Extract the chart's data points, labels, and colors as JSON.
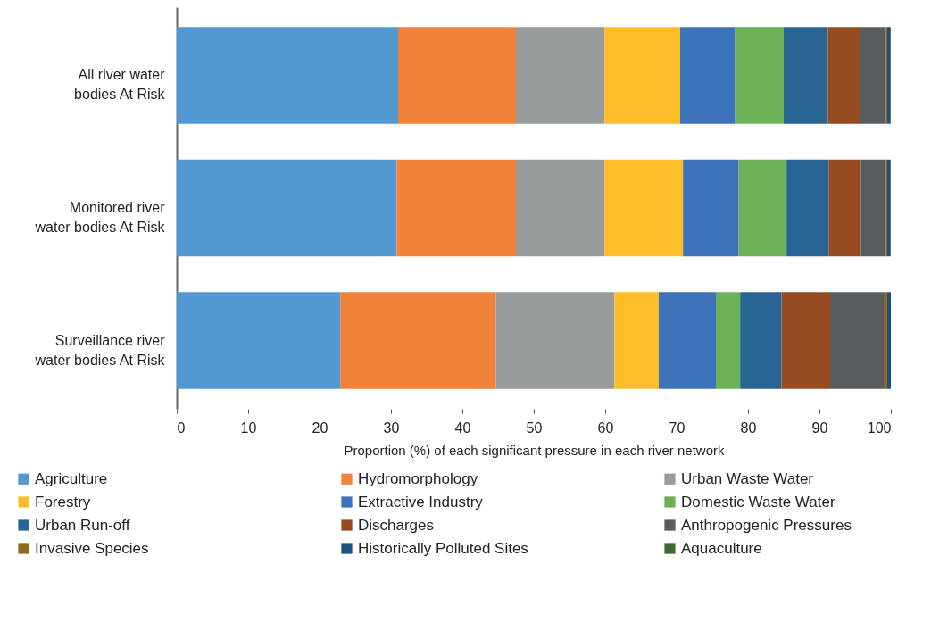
{
  "chart_data": {
    "type": "bar",
    "orientation": "horizontal",
    "stacked": true,
    "xlabel": "Proportion (%) of each significant pressure in each river network",
    "categories": [
      "All river water bodies At Risk",
      "Monitored river water bodies At Risk",
      "Surveillance river water bodies At Risk"
    ],
    "xlim": [
      0,
      100
    ],
    "xticks": [
      0,
      10,
      20,
      30,
      40,
      50,
      60,
      70,
      80,
      90,
      100
    ],
    "grid": false,
    "legend": "bottom",
    "series": [
      {
        "name": "Agriculture",
        "color": "#5298d2",
        "values": [
          31.0,
          30.8,
          22.9
        ]
      },
      {
        "name": "Hydromorphology",
        "color": "#f0823b",
        "values": [
          16.5,
          16.7,
          21.8
        ]
      },
      {
        "name": "Urban Waste Water",
        "color": "#999c9d",
        "values": [
          12.4,
          12.4,
          16.6
        ]
      },
      {
        "name": "Forestry",
        "color": "#fdbe29",
        "values": [
          10.6,
          11.0,
          6.2
        ]
      },
      {
        "name": "Extractive Industry",
        "color": "#3d73ba",
        "values": [
          7.7,
          7.8,
          8.0
        ]
      },
      {
        "name": "Domestic Waste Water",
        "color": "#6db156",
        "values": [
          6.8,
          6.7,
          3.4
        ]
      },
      {
        "name": "Urban Run-off",
        "color": "#276494",
        "values": [
          6.2,
          5.9,
          5.8
        ]
      },
      {
        "name": "Discharges",
        "color": "#964b20",
        "values": [
          4.5,
          4.5,
          6.8
        ]
      },
      {
        "name": "Anthropogenic Pressures",
        "color": "#5a5d5f",
        "values": [
          3.6,
          3.5,
          7.5
        ]
      },
      {
        "name": "Invasive Species",
        "color": "#8a6b1f",
        "values": [
          0.2,
          0.2,
          0.5
        ]
      },
      {
        "name": "Historically Polluted Sites",
        "color": "#1f4e80",
        "values": [
          0.4,
          0.4,
          0.5
        ]
      },
      {
        "name": "Aquaculture",
        "color": "#3d6b30",
        "values": [
          0.1,
          0.1,
          0.0
        ]
      }
    ]
  }
}
